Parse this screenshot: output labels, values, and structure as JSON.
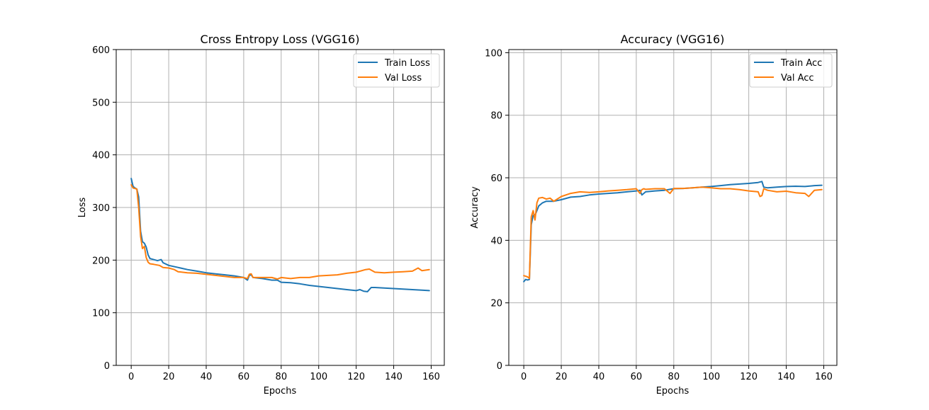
{
  "colors": {
    "train": "#1f77b4",
    "val": "#ff7f0e",
    "grid": "#b0b0b0"
  },
  "chart_data": [
    {
      "type": "line",
      "title": "Cross Entropy Loss (VGG16)",
      "xlabel": "Epochs",
      "ylabel": "Loss",
      "xlim": [
        -8,
        167
      ],
      "ylim": [
        0,
        600
      ],
      "xticks": [
        0,
        20,
        40,
        60,
        80,
        100,
        120,
        140,
        160
      ],
      "yticks": [
        0,
        100,
        200,
        300,
        400,
        500,
        600
      ],
      "grid": true,
      "legend_position": "top-right",
      "series": [
        {
          "name": "Train Loss",
          "color": "#1f77b4",
          "points": [
            [
              0,
              355
            ],
            [
              1,
              340
            ],
            [
              2,
              337
            ],
            [
              3,
              335
            ],
            [
              4,
              320
            ],
            [
              5,
              255
            ],
            [
              6,
              235
            ],
            [
              7,
              232
            ],
            [
              8,
              225
            ],
            [
              9,
              210
            ],
            [
              10,
              203
            ],
            [
              12,
              201
            ],
            [
              14,
              199
            ],
            [
              16,
              201
            ],
            [
              17,
              195
            ],
            [
              20,
              190
            ],
            [
              25,
              186
            ],
            [
              30,
              182
            ],
            [
              35,
              179
            ],
            [
              40,
              176
            ],
            [
              45,
              174
            ],
            [
              50,
              172
            ],
            [
              55,
              170
            ],
            [
              60,
              167
            ],
            [
              62,
              162
            ],
            [
              63,
              171
            ],
            [
              64,
              172
            ],
            [
              65,
              167
            ],
            [
              70,
              165
            ],
            [
              75,
              162
            ],
            [
              78,
              162
            ],
            [
              80,
              158
            ],
            [
              85,
              157
            ],
            [
              90,
              155
            ],
            [
              95,
              152
            ],
            [
              100,
              150
            ],
            [
              105,
              148
            ],
            [
              110,
              146
            ],
            [
              115,
              144
            ],
            [
              120,
              142
            ],
            [
              122,
              144
            ],
            [
              124,
              141
            ],
            [
              126,
              140
            ],
            [
              128,
              148
            ],
            [
              130,
              148
            ],
            [
              135,
              147
            ],
            [
              140,
              146
            ],
            [
              145,
              145
            ],
            [
              150,
              144
            ],
            [
              155,
              143
            ],
            [
              159,
              142
            ]
          ]
        },
        {
          "name": "Val Loss",
          "color": "#ff7f0e",
          "points": [
            [
              0,
              343
            ],
            [
              1,
              337
            ],
            [
              2,
              336
            ],
            [
              3,
              335
            ],
            [
              4,
              300
            ],
            [
              5,
              245
            ],
            [
              6,
              222
            ],
            [
              7,
              226
            ],
            [
              8,
              205
            ],
            [
              9,
              196
            ],
            [
              10,
              193
            ],
            [
              12,
              192
            ],
            [
              15,
              190
            ],
            [
              17,
              186
            ],
            [
              20,
              185
            ],
            [
              23,
              182
            ],
            [
              25,
              178
            ],
            [
              30,
              176
            ],
            [
              35,
              175
            ],
            [
              40,
              173
            ],
            [
              45,
              171
            ],
            [
              50,
              169
            ],
            [
              55,
              167
            ],
            [
              60,
              167
            ],
            [
              62,
              165
            ],
            [
              63,
              173
            ],
            [
              64,
              174
            ],
            [
              65,
              167
            ],
            [
              70,
              167
            ],
            [
              75,
              167
            ],
            [
              78,
              164
            ],
            [
              80,
              167
            ],
            [
              85,
              165
            ],
            [
              90,
              167
            ],
            [
              95,
              167
            ],
            [
              100,
              170
            ],
            [
              105,
              171
            ],
            [
              110,
              172
            ],
            [
              115,
              175
            ],
            [
              120,
              177
            ],
            [
              125,
              182
            ],
            [
              127,
              183
            ],
            [
              130,
              177
            ],
            [
              135,
              176
            ],
            [
              140,
              177
            ],
            [
              145,
              178
            ],
            [
              150,
              179
            ],
            [
              153,
              185
            ],
            [
              155,
              180
            ],
            [
              159,
              182
            ]
          ]
        }
      ]
    },
    {
      "type": "line",
      "title": "Accuracy (VGG16)",
      "xlabel": "Epochs",
      "ylabel": "Accuracy",
      "xlim": [
        -8,
        167
      ],
      "ylim": [
        0,
        101
      ],
      "xticks": [
        0,
        20,
        40,
        60,
        80,
        100,
        120,
        140,
        160
      ],
      "yticks": [
        0,
        20,
        40,
        60,
        80,
        100
      ],
      "grid": true,
      "legend_position": "top-right",
      "series": [
        {
          "name": "Train Acc",
          "color": "#1f77b4",
          "points": [
            [
              0,
              26.8
            ],
            [
              1,
              27.5
            ],
            [
              2,
              27.3
            ],
            [
              3,
              27.5
            ],
            [
              4,
              45
            ],
            [
              5,
              48
            ],
            [
              6,
              48
            ],
            [
              7,
              49.5
            ],
            [
              8,
              51
            ],
            [
              10,
              52
            ],
            [
              12,
              52.5
            ],
            [
              14,
              52.5
            ],
            [
              16,
              52.5
            ],
            [
              20,
              53
            ],
            [
              25,
              53.8
            ],
            [
              30,
              54
            ],
            [
              35,
              54.5
            ],
            [
              40,
              54.8
            ],
            [
              45,
              55
            ],
            [
              50,
              55.2
            ],
            [
              55,
              55.5
            ],
            [
              60,
              55.8
            ],
            [
              62,
              56
            ],
            [
              63,
              54.5
            ],
            [
              64,
              55
            ],
            [
              65,
              55.5
            ],
            [
              70,
              55.8
            ],
            [
              75,
              56
            ],
            [
              80,
              56.5
            ],
            [
              85,
              56.6
            ],
            [
              90,
              56.8
            ],
            [
              95,
              57
            ],
            [
              100,
              57.2
            ],
            [
              105,
              57.5
            ],
            [
              110,
              57.8
            ],
            [
              115,
              58
            ],
            [
              120,
              58.2
            ],
            [
              125,
              58.5
            ],
            [
              127,
              58.8
            ],
            [
              128,
              57
            ],
            [
              130,
              56.8
            ],
            [
              135,
              57
            ],
            [
              140,
              57.2
            ],
            [
              145,
              57.3
            ],
            [
              150,
              57.2
            ],
            [
              155,
              57.5
            ],
            [
              159,
              57.6
            ]
          ]
        },
        {
          "name": "Val Acc",
          "color": "#ff7f0e",
          "points": [
            [
              0,
              28.7
            ],
            [
              1,
              28.5
            ],
            [
              2,
              28.3
            ],
            [
              3,
              27.8
            ],
            [
              4,
              47.5
            ],
            [
              5,
              49.5
            ],
            [
              6,
              46.5
            ],
            [
              7,
              52
            ],
            [
              8,
              53.5
            ],
            [
              10,
              53.7
            ],
            [
              12,
              53.2
            ],
            [
              14,
              53.5
            ],
            [
              16,
              52.5
            ],
            [
              20,
              54
            ],
            [
              25,
              55
            ],
            [
              30,
              55.5
            ],
            [
              35,
              55.3
            ],
            [
              40,
              55.5
            ],
            [
              45,
              55.8
            ],
            [
              50,
              56
            ],
            [
              55,
              56.2
            ],
            [
              60,
              56.5
            ],
            [
              62,
              55
            ],
            [
              63,
              56.2
            ],
            [
              64,
              56.5
            ],
            [
              65,
              56.3
            ],
            [
              70,
              56.5
            ],
            [
              75,
              56.5
            ],
            [
              78,
              55
            ],
            [
              80,
              56.6
            ],
            [
              85,
              56.6
            ],
            [
              90,
              56.8
            ],
            [
              95,
              57
            ],
            [
              100,
              56.8
            ],
            [
              105,
              56.5
            ],
            [
              110,
              56.5
            ],
            [
              115,
              56.2
            ],
            [
              120,
              55.8
            ],
            [
              125,
              55.5
            ],
            [
              126,
              54
            ],
            [
              127,
              54.3
            ],
            [
              128,
              56.5
            ],
            [
              130,
              56
            ],
            [
              135,
              55.5
            ],
            [
              140,
              55.7
            ],
            [
              145,
              55.2
            ],
            [
              150,
              55
            ],
            [
              152,
              54
            ],
            [
              155,
              56
            ],
            [
              159,
              56.2
            ]
          ]
        }
      ]
    }
  ]
}
